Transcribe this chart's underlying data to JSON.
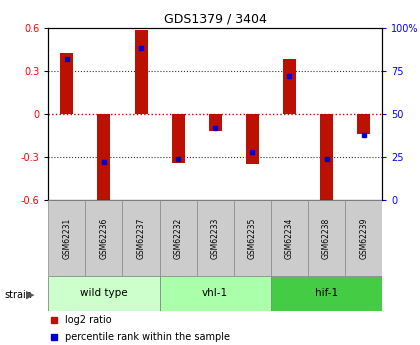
{
  "title": "GDS1379 / 3404",
  "samples": [
    "GSM62231",
    "GSM62236",
    "GSM62237",
    "GSM62232",
    "GSM62233",
    "GSM62235",
    "GSM62234",
    "GSM62238",
    "GSM62239"
  ],
  "log2_ratio": [
    0.42,
    -0.62,
    0.58,
    -0.34,
    -0.12,
    -0.35,
    0.38,
    -0.63,
    -0.14
  ],
  "percentile": [
    82,
    22,
    88,
    24,
    42,
    28,
    72,
    24,
    38
  ],
  "groups": [
    {
      "label": "wild type",
      "start": 0,
      "end": 3,
      "color": "#ccffcc"
    },
    {
      "label": "vhl-1",
      "start": 3,
      "end": 6,
      "color": "#aaffaa"
    },
    {
      "label": "hif-1",
      "start": 6,
      "end": 9,
      "color": "#44cc44"
    }
  ],
  "ylim": [
    -0.6,
    0.6
  ],
  "yticks": [
    -0.6,
    -0.3,
    0.0,
    0.3,
    0.6
  ],
  "right_yticks": [
    0,
    25,
    50,
    75,
    100
  ],
  "bar_color": "#bb1100",
  "dot_color": "#0000cc",
  "hline_color": "#cc0000",
  "grid_color": "#333333",
  "bg_color": "#ffffff",
  "strain_label": "strain",
  "legend_log2": "log2 ratio",
  "legend_pct": "percentile rank within the sample",
  "bar_width": 0.35
}
